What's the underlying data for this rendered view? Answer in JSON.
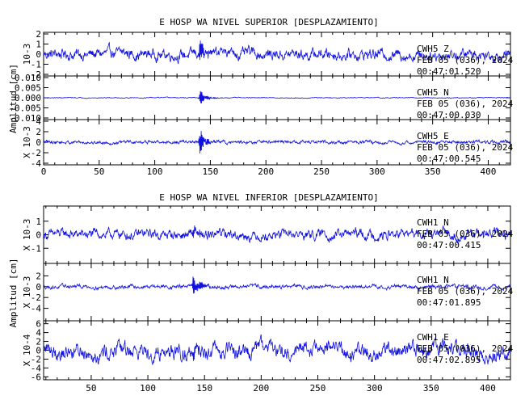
{
  "colors": {
    "trace": "#1010e0",
    "frame": "#000000",
    "background": "#ffffff"
  },
  "chart_data": [
    {
      "type": "line",
      "title": "E HOSP WA NIVEL SUPERIOR [DESPLAZAMIENTO]",
      "ylabel": "Amplitud [cm]",
      "xlim": [
        0,
        420
      ],
      "xticks": [
        "0",
        "50",
        "100",
        "150",
        "200",
        "250",
        "300",
        "350",
        "400"
      ],
      "event_time": 140,
      "panels": [
        {
          "station": "CWH5",
          "channel": "Z",
          "date": "FEB 05 (036), 2024",
          "time": "00:47:01.520",
          "scale": "10-3",
          "ylim": [
            -2,
            2
          ],
          "yticks": [
            "2",
            "1",
            "0",
            "-1",
            "-2"
          ],
          "yvals": [
            2,
            1,
            0,
            -1,
            -2
          ],
          "noise": 0.75,
          "event_amp": 1.6
        },
        {
          "station": "CWH5",
          "channel": "N",
          "date": "FEB 05 (036), 2024",
          "time": "00:47:00.030",
          "scale": "",
          "ylim": [
            -0.01,
            0.01
          ],
          "yticks": [
            "0.010",
            "0.005",
            "0.000",
            "-0.005",
            "-0.010"
          ],
          "yvals": [
            0.01,
            0.005,
            0,
            -0.005,
            -0.01
          ],
          "noise": 0.0003,
          "event_amp": 0.006
        },
        {
          "station": "CWH5",
          "channel": "E",
          "date": "FEB 05 (036), 2024",
          "time": "00:47:00.545",
          "scale": "X 10-3",
          "ylim": [
            -4,
            4
          ],
          "yticks": [
            "4",
            "2",
            "0",
            "-2",
            "-4"
          ],
          "yvals": [
            4,
            2,
            0,
            -2,
            -4
          ],
          "noise": 0.45,
          "event_amp": 3.7
        }
      ]
    },
    {
      "type": "line",
      "title": "E HOSP WA NIVEL INFERIOR [DESPLAZAMIENTO]",
      "ylabel": "Amplitud [cm]",
      "xlim": [
        8,
        420
      ],
      "xticks": [
        "50",
        "100",
        "150",
        "200",
        "250",
        "300",
        "350",
        "400"
      ],
      "event_time": 140,
      "panels": [
        {
          "station": "CWH1",
          "channel": "N",
          "date": "FEB 05 (036), 2024",
          "time": "00:47:00.415",
          "scale": "X 10-3",
          "ylim": [
            -2,
            2
          ],
          "yticks": [
            "1",
            "0",
            "-1"
          ],
          "yvals": [
            1,
            0,
            -1
          ],
          "noise": 0.5,
          "event_amp": 0.8
        },
        {
          "station": "CWH1",
          "channel": "N",
          "date": "FEB 05 (036), 2024",
          "time": "00:47:01.895",
          "scale": "X 10-3",
          "ylim": [
            -6,
            4
          ],
          "yticks": [
            "2",
            "0",
            "-2",
            "-4"
          ],
          "yvals": [
            2,
            0,
            -2,
            -4
          ],
          "noise": 0.5,
          "event_amp": 3.8
        },
        {
          "station": "CWH1",
          "channel": "E",
          "date": "FEB 05 (036), 2024",
          "time": "00:47:02.895",
          "scale": "X 10-4",
          "ylim": [
            -6.3,
            6.3
          ],
          "yticks": [
            "6",
            "4",
            "2",
            "0",
            "-2",
            "-4",
            "-6"
          ],
          "yvals": [
            6,
            4,
            2,
            0,
            -2,
            -4,
            -6
          ],
          "noise": 2.5,
          "event_amp": 3.0
        }
      ]
    }
  ]
}
